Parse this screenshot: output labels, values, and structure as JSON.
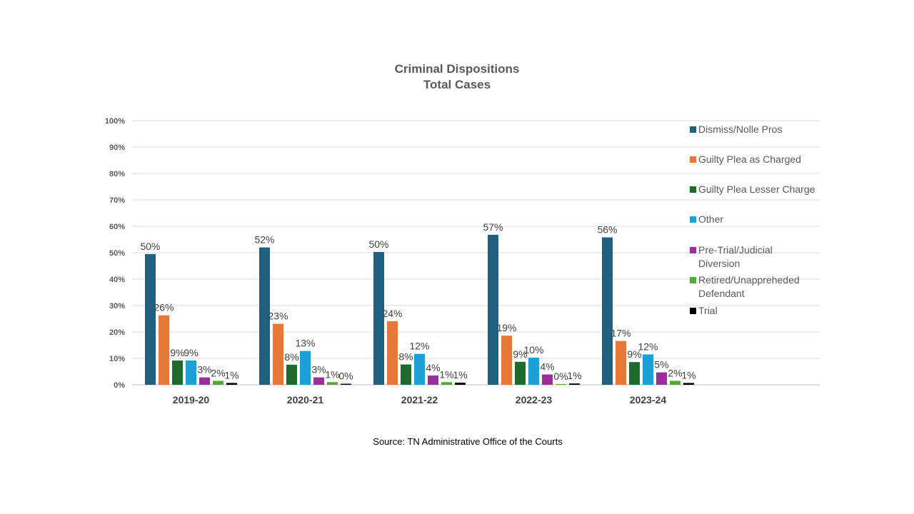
{
  "chart_data": {
    "type": "bar",
    "title": "Criminal Dispositions",
    "subtitle": "Total Cases",
    "xlabel": "",
    "ylabel": "",
    "ylim": [
      0,
      100
    ],
    "yticks": [
      "0%",
      "10%",
      "20%",
      "30%",
      "40%",
      "50%",
      "60%",
      "70%",
      "80%",
      "90%",
      "100%"
    ],
    "categories": [
      "2019-20",
      "2020-21",
      "2021-22",
      "2022-23",
      "2023-24"
    ],
    "grid": true,
    "legend_position": "right",
    "series": [
      {
        "name": "Dismiss/Nolle Pros",
        "color": "#1f5f7f",
        "values": [
          49.5,
          52,
          50.3,
          56.8,
          55.8
        ],
        "labels": [
          "50%",
          "52%",
          "50%",
          "57%",
          "56%"
        ]
      },
      {
        "name": "Guilty Plea as Charged",
        "color": "#e8773a",
        "values": [
          26.3,
          23.1,
          24.1,
          18.6,
          16.6
        ],
        "labels": [
          "26%",
          "23%",
          "24%",
          "19%",
          "17%"
        ]
      },
      {
        "name": "Guilty Plea Lesser Charge",
        "color": "#1e6b2e",
        "values": [
          9.2,
          7.6,
          7.7,
          8.7,
          8.6
        ],
        "labels": [
          "9%",
          "8%",
          "8%",
          "9%",
          "9%"
        ]
      },
      {
        "name": "Other",
        "color": "#1ba1d6",
        "values": [
          9.2,
          12.8,
          11.7,
          10.3,
          11.5
        ],
        "labels": [
          "9%",
          "13%",
          "12%",
          "10%",
          "12%"
        ]
      },
      {
        "name": "Pre-Trial/Judicial Diversion",
        "color": "#9c2d9c",
        "values": [
          2.8,
          2.8,
          3.5,
          3.9,
          4.7
        ],
        "labels": [
          "3%",
          "3%",
          "4%",
          "4%",
          "5%"
        ]
      },
      {
        "name": "Retired/Unappreheded Defendant",
        "color": "#57a83a",
        "values": [
          1.5,
          1.0,
          1.0,
          0.3,
          1.5
        ],
        "labels": [
          "2%",
          "1%",
          "1%",
          "0%",
          "2%"
        ]
      },
      {
        "name": "Trial",
        "color": "#000000",
        "values": [
          0.7,
          0.4,
          0.8,
          0.5,
          0.7
        ],
        "labels": [
          "1%",
          "0%",
          "1%",
          "1%",
          "1%"
        ]
      }
    ]
  },
  "source": "Source: TN Administrative Office of the Courts"
}
